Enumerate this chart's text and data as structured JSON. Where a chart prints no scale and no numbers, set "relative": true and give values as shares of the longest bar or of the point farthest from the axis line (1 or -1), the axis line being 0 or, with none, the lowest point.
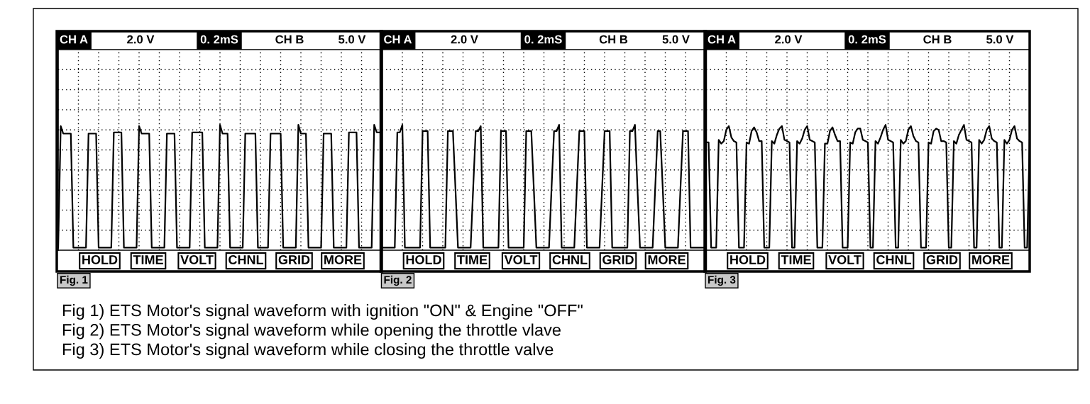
{
  "chart_data": [
    {
      "type": "line",
      "title": "Fig. 1",
      "relative": true,
      "grid": true,
      "line_style": "solid",
      "annotations": [
        "CH A",
        "2.0 V",
        "0. 2mS",
        "CH B",
        "5.0 V",
        "HOLD",
        "TIME",
        "VOLT",
        "CHNL",
        "GRID",
        "MORE",
        "Fig 1) ETS Motor's signal waveform with ignition \"ON\" & Engine \"OFF\""
      ],
      "categories": [
        null,
        null,
        null,
        null,
        null,
        null,
        null,
        null,
        null,
        null,
        null,
        null,
        null,
        null,
        null,
        null,
        null,
        null,
        null,
        null,
        null,
        null,
        null,
        null,
        null,
        null,
        null,
        null,
        null,
        null,
        null,
        null,
        null,
        null,
        null,
        null,
        null,
        null,
        null,
        null,
        null,
        null,
        null,
        null,
        null,
        null,
        null,
        null,
        null,
        null,
        null,
        null,
        null,
        null,
        null,
        null,
        null,
        null,
        null,
        null,
        null,
        null,
        null,
        null,
        null,
        null,
        null,
        null,
        null,
        null,
        null,
        null,
        null,
        null,
        null,
        null,
        null,
        null,
        null,
        null,
        null,
        null,
        null,
        null,
        null,
        null,
        null,
        null,
        null,
        null,
        null,
        null,
        null,
        null,
        null,
        null,
        null,
        null,
        null,
        null,
        null,
        null,
        null,
        null,
        null,
        null,
        null,
        null,
        null,
        null,
        null,
        null,
        null,
        null,
        null,
        null,
        null,
        null,
        null,
        null,
        null,
        null,
        null,
        null,
        null,
        null,
        null,
        null,
        null
      ],
      "series": [
        {
          "color": "#000000",
          "values": [
            0.02,
            0.99,
            0.93,
            0.93,
            0.93,
            0.93,
            0.02,
            0.02,
            0.02,
            0.02,
            0.02,
            0.02,
            0.93,
            0.93,
            0.93,
            0.93,
            0.02,
            0.02,
            0.02,
            0.02,
            0.02,
            0.02,
            0.94,
            0.94,
            0.94,
            0.94,
            0.02,
            0.02,
            0.02,
            0.02,
            0.02,
            0.02,
            0.99,
            0.93,
            0.93,
            0.93,
            0.93,
            0.02,
            0.02,
            0.02,
            0.02,
            0.02,
            0.02,
            0.93,
            0.93,
            0.93,
            0.93,
            0.02,
            0.02,
            0.02,
            0.02,
            0.02,
            0.02,
            0.94,
            0.94,
            0.94,
            0.94,
            0.94,
            0.02,
            0.02,
            0.02,
            0.02,
            0.02,
            0.02,
            1.0,
            0.93,
            0.93,
            0.93,
            0.02,
            0.02,
            0.02,
            0.02,
            0.02,
            0.02,
            0.93,
            0.93,
            0.93,
            0.93,
            0.93,
            0.02,
            0.02,
            0.02,
            0.02,
            0.02,
            0.93,
            0.93,
            0.93,
            0.93,
            0.93,
            0.02,
            0.02,
            0.02,
            0.02,
            0.02,
            0.02,
            1.0,
            0.93,
            0.93,
            0.93,
            0.02,
            0.02,
            0.02,
            0.02,
            0.02,
            0.02,
            0.93,
            0.93,
            0.93,
            0.93,
            0.02,
            0.02,
            0.02,
            0.02,
            0.02,
            0.02,
            0.94,
            0.94,
            0.94,
            0.94,
            0.02,
            0.02,
            0.02,
            0.02,
            0.02,
            0.02,
            1.0,
            0.94,
            0.94,
            0.94
          ]
        }
      ]
    },
    {
      "type": "line",
      "title": "Fig. 2",
      "relative": true,
      "grid": true,
      "line_style": "solid",
      "annotations": [
        "CH A",
        "2.0 V",
        "0. 2mS",
        "CH B",
        "5.0 V",
        "HOLD",
        "TIME",
        "VOLT",
        "CHNL",
        "GRID",
        "MORE",
        "Fig 2) ETS Motor's signal waveform while opening the throttle vlave"
      ],
      "categories": [
        null,
        null,
        null,
        null,
        null,
        null,
        null,
        null,
        null,
        null,
        null,
        null,
        null,
        null,
        null,
        null,
        null,
        null,
        null,
        null,
        null,
        null,
        null,
        null,
        null,
        null,
        null,
        null,
        null,
        null,
        null,
        null,
        null,
        null,
        null,
        null,
        null,
        null,
        null,
        null,
        null,
        null,
        null,
        null,
        null,
        null,
        null,
        null,
        null,
        null,
        null,
        null,
        null,
        null,
        null,
        null,
        null,
        null,
        null,
        null,
        null,
        null,
        null,
        null,
        null,
        null,
        null,
        null,
        null,
        null,
        null,
        null,
        null,
        null,
        null,
        null,
        null,
        null,
        null,
        null,
        null,
        null,
        null,
        null,
        null,
        null,
        null,
        null,
        null,
        null,
        null,
        null,
        null,
        null,
        null,
        null,
        null,
        null,
        null,
        null,
        null,
        null,
        null,
        null,
        null,
        null,
        null,
        null,
        null,
        null,
        null,
        null,
        null,
        null,
        null,
        null,
        null,
        null,
        null,
        null,
        null,
        null,
        null,
        null,
        null,
        null,
        null,
        null,
        null
      ],
      "series": [
        {
          "color": "#000000",
          "values": [
            0.02,
            0.02,
            0.02,
            0.02,
            0.02,
            0.02,
            0.94,
            0.94,
            1.0,
            0.02,
            0.02,
            0.02,
            0.02,
            0.02,
            0.02,
            0.02,
            0.95,
            0.95,
            0.95,
            0.02,
            0.02,
            0.02,
            0.02,
            0.02,
            0.02,
            0.02,
            0.95,
            0.95,
            0.95,
            0.49,
            0.02,
            0.02,
            0.02,
            0.02,
            0.02,
            0.02,
            0.49,
            0.95,
            0.95,
            0.99,
            0.02,
            0.02,
            0.02,
            0.02,
            0.02,
            0.02,
            0.02,
            0.95,
            0.95,
            0.95,
            0.02,
            0.02,
            0.02,
            0.02,
            0.02,
            0.02,
            0.02,
            0.95,
            0.95,
            0.95,
            0.49,
            0.02,
            0.02,
            0.02,
            0.02,
            0.02,
            0.02,
            0.49,
            0.95,
            0.95,
            1.0,
            0.02,
            0.02,
            0.02,
            0.02,
            0.02,
            0.02,
            0.49,
            0.95,
            0.95,
            0.95,
            0.02,
            0.02,
            0.02,
            0.02,
            0.02,
            0.02,
            0.49,
            0.95,
            0.95,
            0.95,
            0.02,
            0.02,
            0.02,
            0.02,
            0.02,
            0.02,
            0.02,
            0.95,
            0.95,
            1.0,
            0.49,
            0.02,
            0.02,
            0.02,
            0.02,
            0.02,
            0.02,
            0.49,
            0.95,
            0.95,
            0.49,
            0.02,
            0.02,
            0.02,
            0.02,
            0.02,
            0.02,
            0.49,
            0.95,
            0.95,
            0.95,
            0.02,
            0.02,
            0.02,
            0.02,
            0.02,
            0.02,
            0.02
          ]
        }
      ]
    },
    {
      "type": "line",
      "title": "Fig. 3",
      "relative": true,
      "grid": true,
      "line_style": "solid",
      "annotations": [
        "CH A",
        "2.0 V",
        "0. 2mS",
        "CH B",
        "5.0 V",
        "HOLD",
        "TIME",
        "VOLT",
        "CHNL",
        "GRID",
        "MORE",
        "Fig 3) ETS Motor's signal waveform while closing the throttle valve"
      ],
      "categories": [
        null,
        null,
        null,
        null,
        null,
        null,
        null,
        null,
        null,
        null,
        null,
        null,
        null,
        null,
        null,
        null,
        null,
        null,
        null,
        null,
        null,
        null,
        null,
        null,
        null,
        null,
        null,
        null,
        null,
        null,
        null,
        null,
        null,
        null,
        null,
        null,
        null,
        null,
        null,
        null,
        null,
        null,
        null,
        null,
        null,
        null,
        null,
        null,
        null,
        null,
        null,
        null,
        null,
        null,
        null,
        null,
        null,
        null,
        null,
        null,
        null,
        null,
        null,
        null,
        null,
        null,
        null,
        null,
        null,
        null,
        null,
        null,
        null,
        null,
        null,
        null,
        null,
        null,
        null,
        null,
        null,
        null,
        null,
        null,
        null,
        null,
        null,
        null,
        null,
        null,
        null,
        null,
        null,
        null,
        null,
        null,
        null,
        null,
        null,
        null,
        null,
        null,
        null,
        null,
        null,
        null,
        null,
        null,
        null,
        null,
        null,
        null,
        null,
        null,
        null,
        null,
        null,
        null,
        null,
        null,
        null,
        null,
        null,
        null,
        null,
        null,
        null,
        null,
        null
      ],
      "series": [
        {
          "color": "#000000",
          "values": [
            0.86,
            0.86,
            0.02,
            0.02,
            0.02,
            0.88,
            0.85,
            0.87,
            0.96,
            0.99,
            0.9,
            0.87,
            0.86,
            0.02,
            0.02,
            0.02,
            0.86,
            0.85,
            0.95,
            0.98,
            0.94,
            0.87,
            0.87,
            0.02,
            0.02,
            0.02,
            0.87,
            0.85,
            0.92,
            0.97,
            0.99,
            0.88,
            0.87,
            0.86,
            0.02,
            0.02,
            0.87,
            0.85,
            0.89,
            0.96,
            0.99,
            0.88,
            0.87,
            0.86,
            0.02,
            0.02,
            0.02,
            0.85,
            0.85,
            0.95,
            0.98,
            0.92,
            0.87,
            0.87,
            0.02,
            0.02,
            0.02,
            0.86,
            0.85,
            0.94,
            0.97,
            0.97,
            0.88,
            0.87,
            0.86,
            0.02,
            0.02,
            0.87,
            0.85,
            0.9,
            0.96,
            1.0,
            0.88,
            0.87,
            0.86,
            0.02,
            0.02,
            0.88,
            0.85,
            0.87,
            0.96,
            0.99,
            0.91,
            0.87,
            0.86,
            0.02,
            0.02,
            0.02,
            0.86,
            0.85,
            0.95,
            0.97,
            0.96,
            0.87,
            0.87,
            0.86,
            0.02,
            0.02,
            0.87,
            0.85,
            0.92,
            0.96,
            1.0,
            0.88,
            0.87,
            0.86,
            0.02,
            0.02,
            0.88,
            0.85,
            0.88,
            0.96,
            0.99,
            0.89,
            0.87,
            0.86,
            0.02,
            0.02,
            0.88,
            0.85,
            0.88,
            0.96,
            0.99,
            0.89,
            0.87,
            0.86,
            0.02,
            0.02,
            0.88
          ]
        }
      ]
    }
  ]
}
